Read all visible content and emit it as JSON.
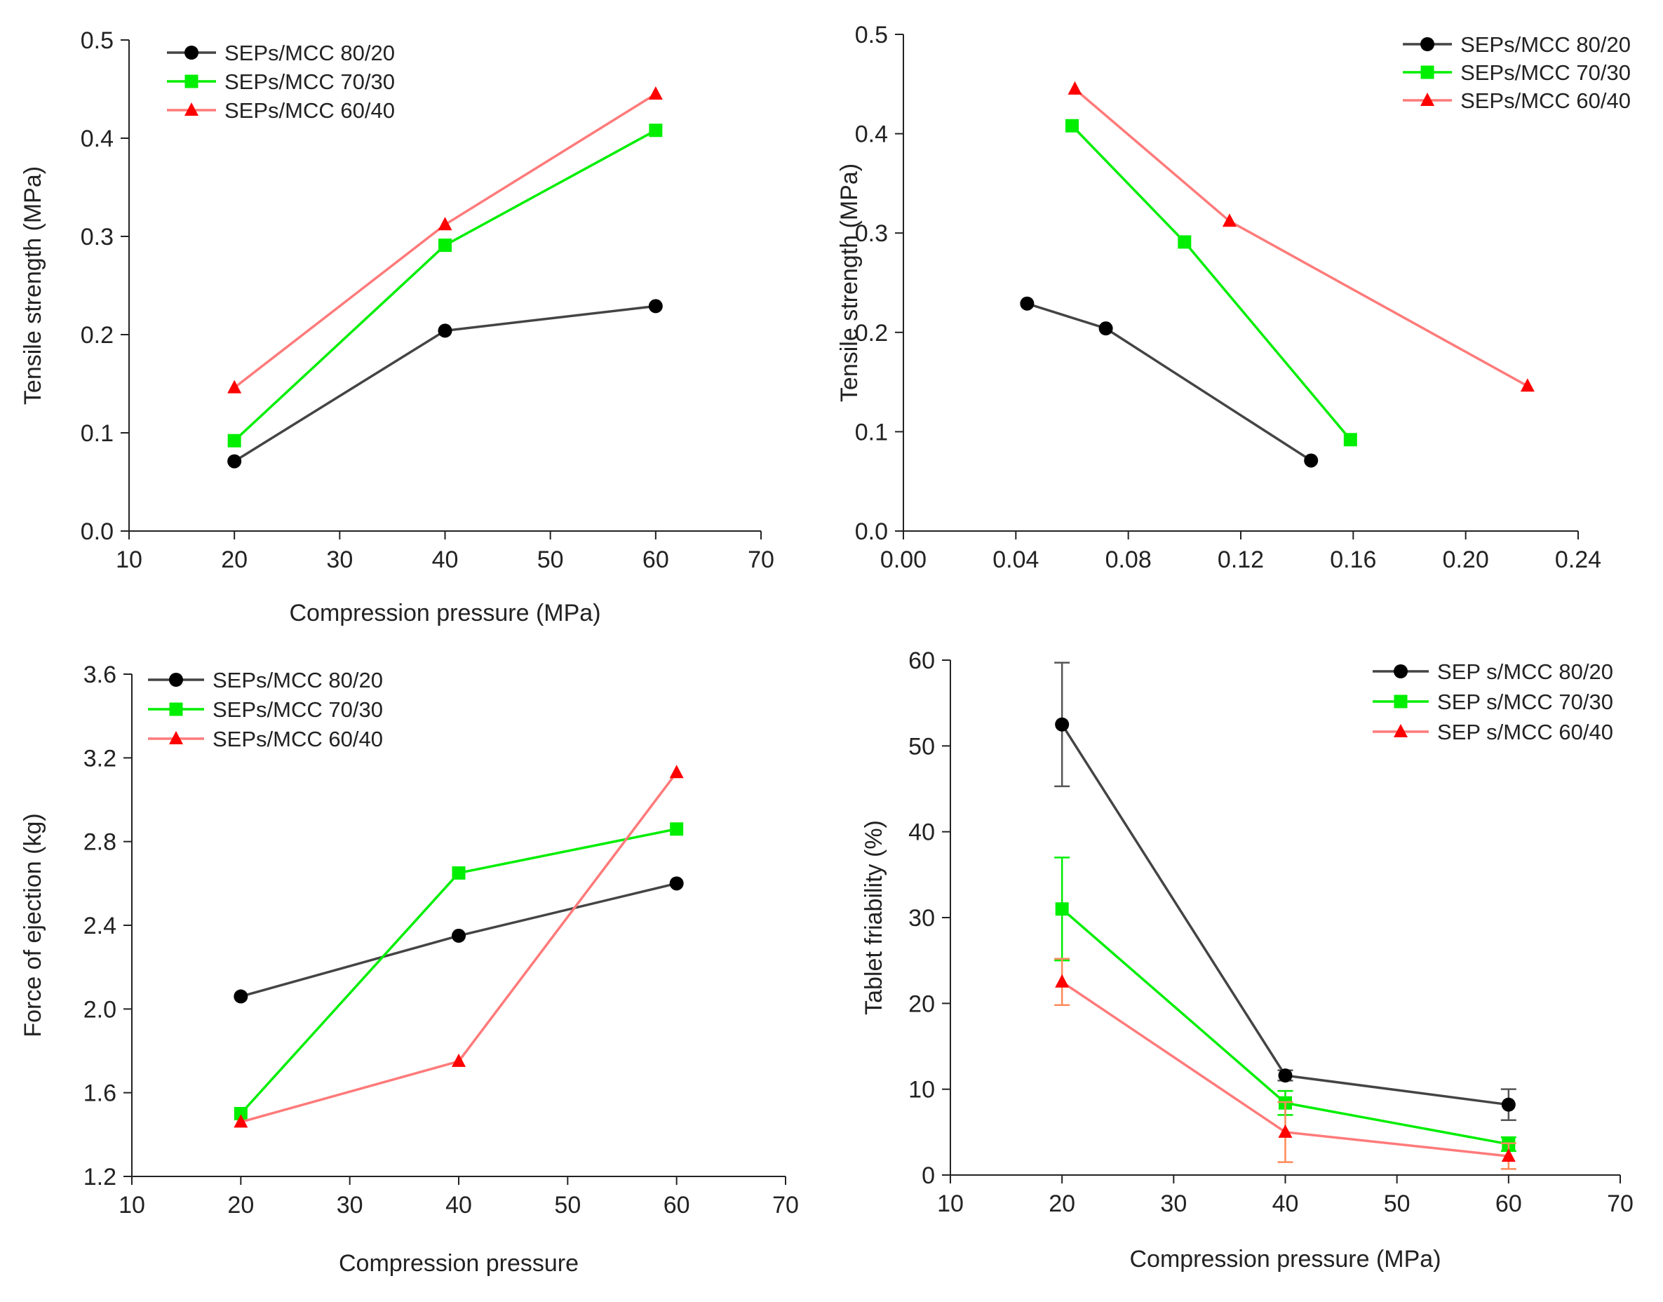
{
  "chart_data": [
    {
      "type": "line",
      "title": "",
      "xlabel": "Compression pressure (MPa)",
      "ylabel": "Tensile strength (MPa)",
      "xlim": [
        10,
        70
      ],
      "ylim": [
        0.0,
        0.5
      ],
      "xticks": [
        "10",
        "20",
        "30",
        "40",
        "50",
        "60",
        "70"
      ],
      "yticks": [
        "0.0",
        "0.1",
        "0.2",
        "0.3",
        "0.4",
        "0.5"
      ],
      "legend": "top-left",
      "series": [
        {
          "name": "SEPs/MCC 80/20",
          "marker": "circle",
          "color": "#000000",
          "x": [
            20,
            40,
            60
          ],
          "y": [
            0.071,
            0.204,
            0.229
          ]
        },
        {
          "name": "SEPs/MCC 70/30",
          "marker": "square",
          "color": "#00ee00",
          "x": [
            20,
            40,
            60
          ],
          "y": [
            0.092,
            0.291,
            0.408
          ]
        },
        {
          "name": "SEPs/MCC 60/40",
          "marker": "triangle",
          "color": "#ff0000",
          "x": [
            20,
            40,
            60
          ],
          "y": [
            0.146,
            0.312,
            0.445
          ]
        }
      ]
    },
    {
      "type": "line",
      "title": "",
      "xlabel": "",
      "ylabel": "Tensile strength (MPa)",
      "xlim": [
        0.0,
        0.24
      ],
      "ylim": [
        0.0,
        0.5
      ],
      "xticks": [
        "0.00",
        "0.04",
        "0.08",
        "0.12",
        "0.16",
        "0.20",
        "0.24"
      ],
      "yticks": [
        "0.0",
        "0.1",
        "0.2",
        "0.3",
        "0.4",
        "0.5"
      ],
      "legend": "top-right",
      "series": [
        {
          "name": "SEPs/MCC 80/20",
          "marker": "circle",
          "color": "#000000",
          "x": [
            0.044,
            0.072,
            0.145
          ],
          "y": [
            0.229,
            0.204,
            0.071
          ]
        },
        {
          "name": "SEPs/MCC 70/30",
          "marker": "square",
          "color": "#00ee00",
          "x": [
            0.06,
            0.1,
            0.159
          ],
          "y": [
            0.408,
            0.291,
            0.092
          ]
        },
        {
          "name": "SEPs/MCC 60/40",
          "marker": "triangle",
          "color": "#ff0000",
          "x": [
            0.061,
            0.116,
            0.222
          ],
          "y": [
            0.445,
            0.312,
            0.146
          ]
        }
      ]
    },
    {
      "type": "line",
      "title": "",
      "xlabel": "Compression pressure",
      "ylabel": "Force of ejection (kg)",
      "xlim": [
        10,
        70
      ],
      "ylim": [
        1.2,
        3.6
      ],
      "xticks": [
        "10",
        "20",
        "30",
        "40",
        "50",
        "60",
        "70"
      ],
      "yticks": [
        "1.2",
        "1.6",
        "2.0",
        "2.4",
        "2.8",
        "3.2",
        "3.6"
      ],
      "legend": "top-left",
      "series": [
        {
          "name": "SEPs/MCC 80/20",
          "marker": "circle",
          "color": "#000000",
          "x": [
            20,
            40,
            60
          ],
          "y": [
            2.06,
            2.35,
            2.6
          ]
        },
        {
          "name": "SEPs/MCC 70/30",
          "marker": "square",
          "color": "#00ee00",
          "x": [
            20,
            40,
            60
          ],
          "y": [
            1.5,
            2.65,
            2.86
          ]
        },
        {
          "name": "SEPs/MCC 60/40",
          "marker": "triangle",
          "color": "#ff0000",
          "x": [
            20,
            40,
            60
          ],
          "y": [
            1.46,
            1.75,
            3.13
          ]
        }
      ]
    },
    {
      "type": "line",
      "title": "",
      "xlabel": "Compression pressure (MPa)",
      "ylabel": "Tablet friability (%)",
      "xlim": [
        10,
        70
      ],
      "ylim": [
        0,
        60
      ],
      "xticks": [
        "10",
        "20",
        "30",
        "40",
        "50",
        "60",
        "70"
      ],
      "yticks": [
        "0",
        "10",
        "20",
        "30",
        "40",
        "50",
        "60"
      ],
      "legend": "top-right",
      "series": [
        {
          "name": "SEP s/MCC 80/20",
          "marker": "circle",
          "color": "#000000",
          "x": [
            20,
            40,
            60
          ],
          "y": [
            52.5,
            11.6,
            8.2
          ],
          "err": [
            7.2,
            0.6,
            1.8
          ]
        },
        {
          "name": "SEP s/MCC 70/30",
          "marker": "square",
          "color": "#00ee00",
          "x": [
            20,
            40,
            60
          ],
          "y": [
            31.0,
            8.4,
            3.6
          ],
          "err": [
            6.0,
            1.4,
            0.8
          ]
        },
        {
          "name": "SEP s/MCC 60/40",
          "marker": "triangle",
          "color": "#ff0000",
          "x": [
            20,
            40,
            60
          ],
          "y": [
            22.5,
            5.0,
            2.2
          ],
          "err": [
            2.7,
            3.5,
            1.5
          ]
        }
      ]
    }
  ]
}
